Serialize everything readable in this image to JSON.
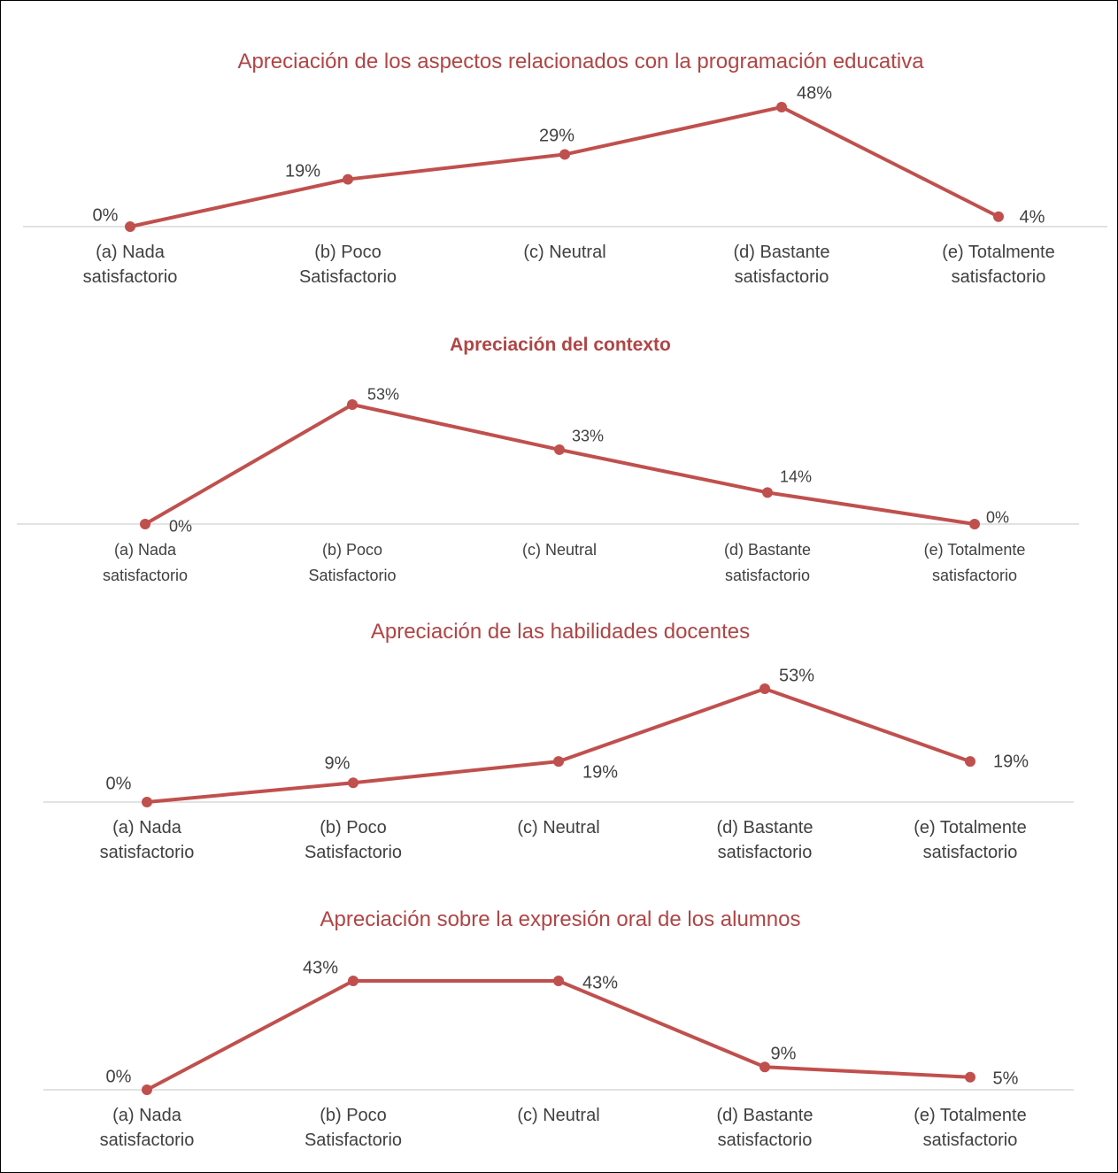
{
  "chart_data": [
    {
      "type": "line",
      "title": "Apreciación de los aspectos relacionados con la programación educativa",
      "categories": [
        "(a) Nada satisfactorio",
        "(b) Poco Satisfactorio",
        "(c) Neutral",
        "(d) Bastante satisfactorio",
        "(e) Totalmente satisfactorio"
      ],
      "values": [
        0,
        19,
        29,
        48,
        4
      ],
      "value_labels": [
        "0%",
        "19%",
        "29%",
        "48%",
        "4%"
      ],
      "color": "#c0504d"
    },
    {
      "type": "line",
      "title": "Apreciación del contexto",
      "categories": [
        "(a) Nada satisfactorio",
        "(b) Poco Satisfactorio",
        "(c) Neutral",
        "(d) Bastante satisfactorio",
        "(e) Totalmente satisfactorio"
      ],
      "values": [
        0,
        53,
        33,
        14,
        0
      ],
      "value_labels": [
        "0%",
        "53%",
        "33%",
        "14%",
        "0%"
      ],
      "color": "#c0504d"
    },
    {
      "type": "line",
      "title": "Apreciación de las habilidades docentes",
      "categories": [
        "(a) Nada satisfactorio",
        "(b) Poco Satisfactorio",
        "(c) Neutral",
        "(d) Bastante satisfactorio",
        "(e) Totalmente satisfactorio"
      ],
      "values": [
        0,
        9,
        19,
        53,
        19
      ],
      "value_labels": [
        "0%",
        "9%",
        "19%",
        "53%",
        "19%"
      ],
      "color": "#c0504d"
    },
    {
      "type": "line",
      "title": "Apreciación sobre la expresión oral de los alumnos",
      "categories": [
        "(a) Nada satisfactorio",
        "(b) Poco Satisfactorio",
        "(c) Neutral",
        "(d) Bastante satisfactorio",
        "(e) Totalmente satisfactorio"
      ],
      "values": [
        0,
        43,
        43,
        9,
        5
      ],
      "value_labels": [
        "0%",
        "43%",
        "43%",
        "9%",
        "5%"
      ],
      "color": "#c0504d"
    }
  ]
}
